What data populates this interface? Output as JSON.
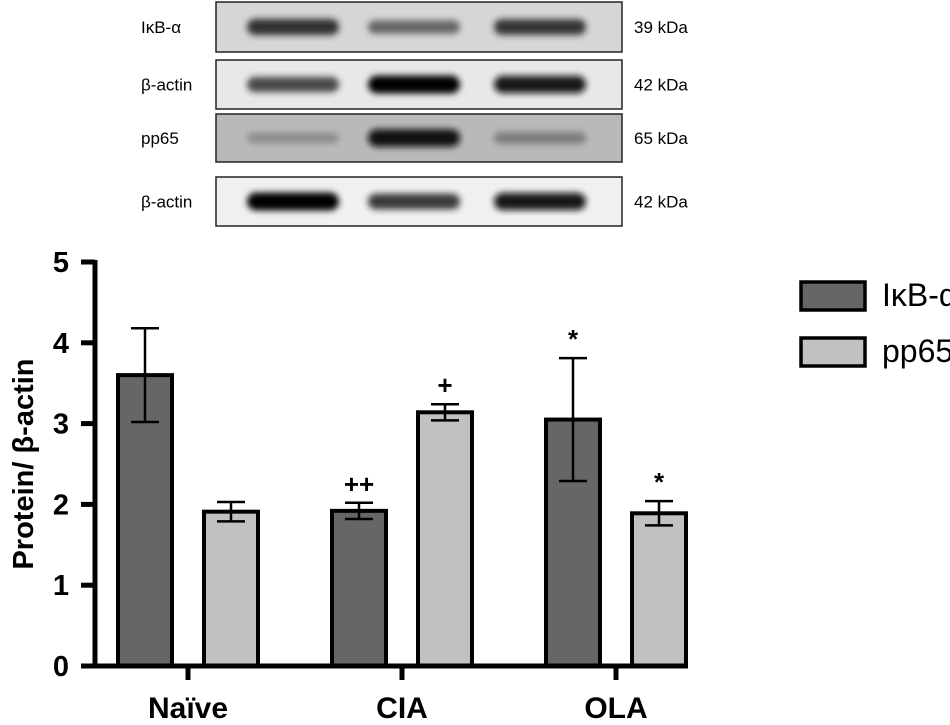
{
  "blots": [
    {
      "label": "IκB-α",
      "size": "39 kDa",
      "bands": [
        0.82,
        0.55,
        0.78
      ],
      "bg": "#d6d6d6"
    },
    {
      "label": "β-actin",
      "size": "42 kDa",
      "bands": [
        0.72,
        1.0,
        0.92
      ],
      "bg": "#e8e8e8"
    },
    {
      "label": "pp65",
      "size": "65 kDa",
      "bands": [
        0.22,
        0.95,
        0.35
      ],
      "bg": "#b9b9b9"
    },
    {
      "label": "β-actin",
      "size": "42 kDa",
      "bands": [
        1.0,
        0.78,
        0.92
      ],
      "bg": "#f0f0f0"
    }
  ],
  "chart_data": {
    "type": "bar",
    "title": "",
    "xlabel": "",
    "ylabel": "Protein/ β-actin",
    "ylim": [
      0,
      5
    ],
    "yticks": [
      0,
      1,
      2,
      3,
      4,
      5
    ],
    "categories": [
      "Naïve",
      "CIA",
      "OLA"
    ],
    "series": [
      {
        "name": "IκB-α",
        "color": "#666666",
        "values": [
          3.6,
          1.92,
          3.05
        ],
        "errors": [
          0.58,
          0.1,
          0.76
        ],
        "annotations": [
          "",
          "++",
          "*"
        ]
      },
      {
        "name": "pp65",
        "color": "#c1c1c1",
        "values": [
          1.91,
          3.14,
          1.89
        ],
        "errors": [
          0.12,
          0.1,
          0.15
        ],
        "annotations": [
          "",
          "+",
          "*"
        ]
      }
    ],
    "legend_position": "right",
    "grid": false
  }
}
